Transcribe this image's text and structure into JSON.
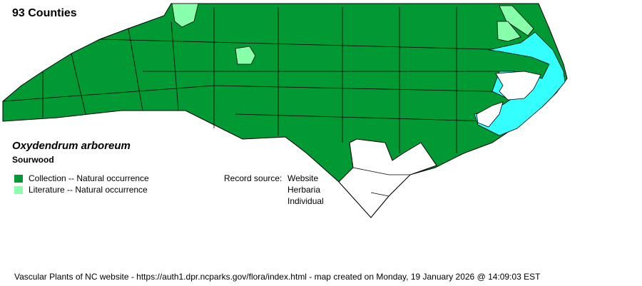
{
  "county_count": "93 Counties",
  "species": {
    "scientific_name": "Oxydendrum arboreum",
    "common_name": "Sourwood"
  },
  "legend": [
    {
      "label": "Collection -- Natural occurrence",
      "color": "#009933"
    },
    {
      "label": "Literature -- Natural occurrence",
      "color": "#88ffaa"
    }
  ],
  "record_source": {
    "label": "Record source:",
    "values": [
      "Website",
      "Herbaria",
      "Individual"
    ]
  },
  "colors": {
    "water": "#33ffff",
    "no_record": "#ffffff"
  },
  "footer": "Vascular Plants of NC website - https://auth1.dpr.ncparks.gov/flora/index.html - map created on Monday, 19 January 2026 @ 14:09:03 EST"
}
